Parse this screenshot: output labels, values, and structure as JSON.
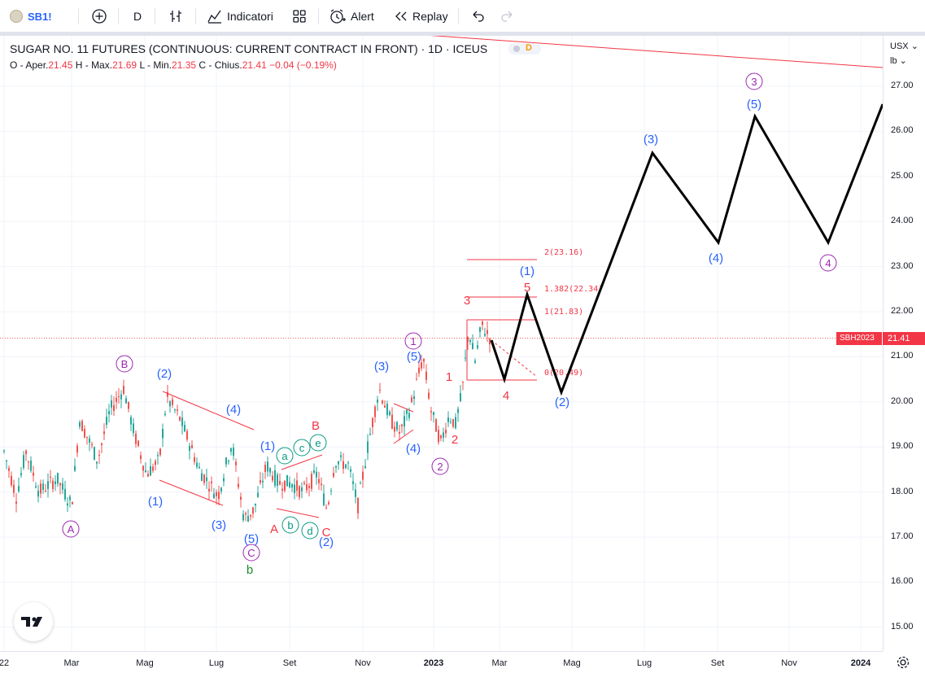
{
  "toolbar": {
    "symbol": "SB1!",
    "interval": "D",
    "indicators_label": "Indicatori",
    "alert_label": "Alert",
    "replay_label": "Replay"
  },
  "legend": {
    "title": "SUGAR NO. 11 FUTURES (CONTINUOUS: CURRENT CONTRACT IN FRONT) · 1D · ICEUS",
    "badge_letter": "D",
    "open_label": "O - Aper.",
    "open": "21.45",
    "high_label": "H - Max.",
    "high": "21.69",
    "low_label": "L - Min.",
    "low": "21.35",
    "close_label": "C - Chius.",
    "close": "21.41",
    "change": "−0.04 (−0.19%)"
  },
  "price_scale": {
    "currency": "USX",
    "unit": "lb",
    "ticks": [
      "27.00",
      "26.00",
      "25.00",
      "24.00",
      "23.00",
      "22.00",
      "21.00",
      "20.00",
      "19.00",
      "18.00",
      "17.00",
      "16.00",
      "15.00"
    ],
    "current_price": "21.41",
    "symbol_tag": "SBH2023"
  },
  "time_scale": {
    "ticks": [
      "22",
      "Mar",
      "Mag",
      "Lug",
      "Set",
      "Nov",
      "2023",
      "Mar",
      "Mag",
      "Lug",
      "Set",
      "Nov",
      "2024"
    ]
  },
  "fib_levels": [
    {
      "label": "2(23.16)"
    },
    {
      "label": "1.382(22.34)"
    },
    {
      "label": "1(21.83)"
    },
    {
      "label": "0(20.49)"
    }
  ],
  "wave_labels": {
    "circled_purple": [
      "A",
      "B",
      "C",
      "1",
      "2",
      "3",
      "4"
    ],
    "blue_minor": [
      "(1)",
      "(2)",
      "(3)",
      "(4)",
      "(5)"
    ],
    "red_minute": [
      "1",
      "2",
      "3",
      "4",
      "5",
      "A",
      "B",
      "C"
    ],
    "green_sub": [
      "a",
      "b",
      "c",
      "d",
      "e"
    ],
    "green_b": "b"
  },
  "colors": {
    "up_candle": "#26a69a",
    "down_candle": "#ef5350",
    "purple_label": "#9c27b0",
    "blue_label": "#2962ff",
    "red_label": "#f23645",
    "green_label": "#089981",
    "projection": "#000000"
  }
}
